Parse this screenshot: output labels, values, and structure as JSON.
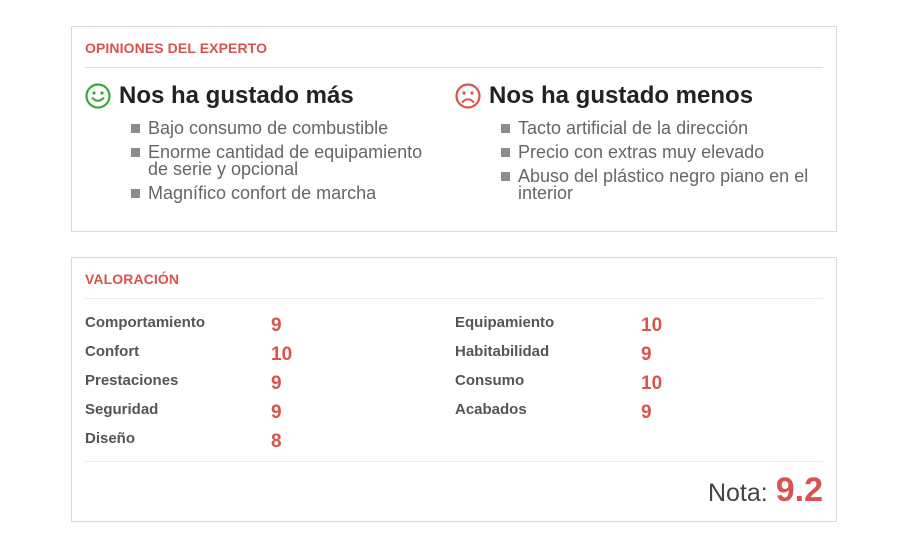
{
  "opinions": {
    "title": "OPINIONES DEL EXPERTO",
    "pros": {
      "title": "Nos ha gustado más",
      "icon": "smile-icon",
      "color": "#3aa83a",
      "items": [
        "Bajo consumo de combustible",
        "Enorme cantidad de equipamiento de serie y opcional",
        "Magnífico confort de marcha"
      ]
    },
    "cons": {
      "title": "Nos ha gustado menos",
      "icon": "frown-icon",
      "color": "#d9534f",
      "items": [
        "Tacto artificial de la dirección",
        "Precio con extras muy elevado",
        "Abuso del plástico negro piano en el interior"
      ]
    }
  },
  "rating": {
    "title": "VALORACIÓN",
    "left": [
      {
        "label": "Comportamiento",
        "score": "9"
      },
      {
        "label": "Confort",
        "score": "10"
      },
      {
        "label": "Prestaciones",
        "score": "9"
      },
      {
        "label": "Seguridad",
        "score": "9"
      },
      {
        "label": "Diseño",
        "score": "8"
      }
    ],
    "right": [
      {
        "label": "Equipamiento",
        "score": "10"
      },
      {
        "label": "Habitabilidad",
        "score": "9"
      },
      {
        "label": "Consumo",
        "score": "10"
      },
      {
        "label": "Acabados",
        "score": "9"
      }
    ],
    "final_label": "Nota:",
    "final_value": "9.2"
  },
  "colors": {
    "accent": "#d9534f",
    "positive": "#3aa83a"
  }
}
